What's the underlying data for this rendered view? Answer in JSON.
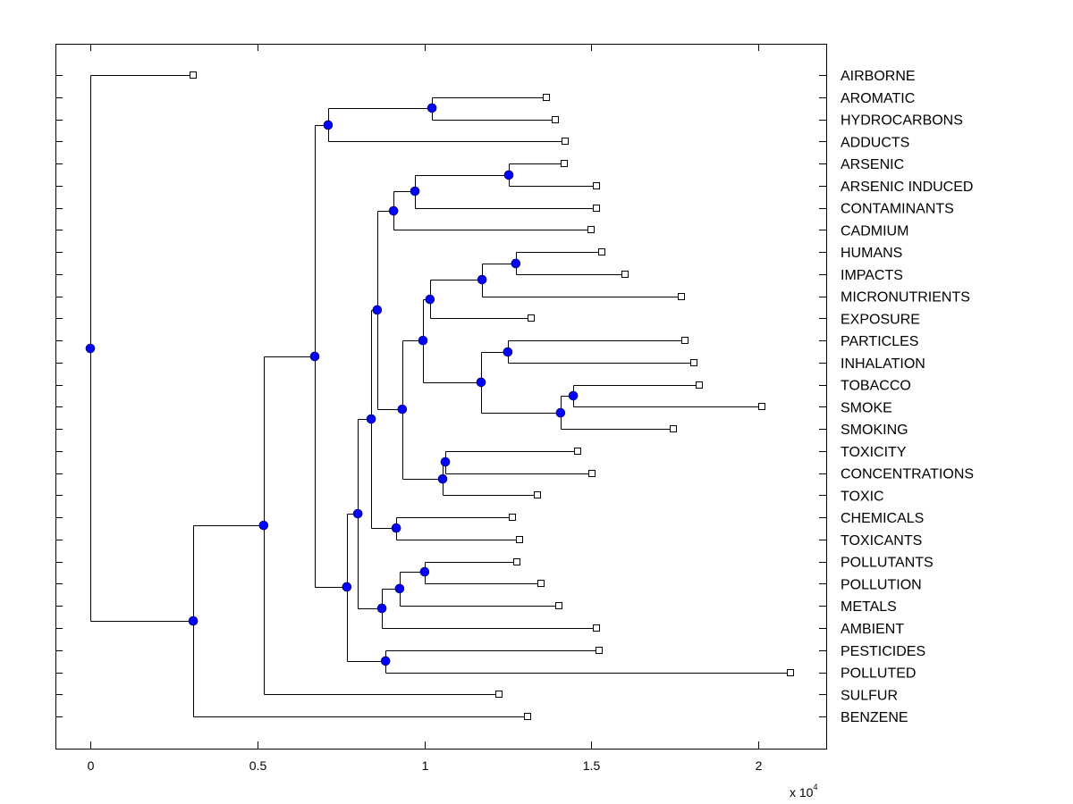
{
  "chart_data": {
    "type": "dendrogram",
    "title": "",
    "xlabel": "",
    "ylabel": "",
    "x_multiplier_label": "x 10",
    "x_multiplier_exponent": "4",
    "xlim": [
      -0.1,
      2.2
    ],
    "xticks": [
      0,
      0.5,
      1,
      1.5,
      2
    ],
    "xtick_labels": [
      "0",
      "0.5",
      "1",
      "1.5",
      "2"
    ],
    "grid": false,
    "colors": {
      "internal_node": "#0000ff",
      "leaf_marker_fill": "#ffffff",
      "line": "#000000"
    },
    "leaves": [
      {
        "id": "AIRBORNE",
        "label": "AIRBORNE",
        "row": 0,
        "x": 0.308
      },
      {
        "id": "AROMATIC",
        "label": "AROMATIC",
        "row": 1,
        "x": 1.365
      },
      {
        "id": "HYDROCARBONS",
        "label": "HYDROCARBONS",
        "row": 2,
        "x": 1.392
      },
      {
        "id": "ADDUCTS",
        "label": "ADDUCTS",
        "row": 3,
        "x": 1.422
      },
      {
        "id": "ARSENIC",
        "label": "ARSENIC",
        "row": 4,
        "x": 1.419
      },
      {
        "id": "ARSENIC_INDUCED",
        "label": "ARSENIC INDUCED",
        "row": 5,
        "x": 1.515
      },
      {
        "id": "CONTAMINANTS",
        "label": "CONTAMINANTS",
        "row": 6,
        "x": 1.515
      },
      {
        "id": "CADMIUM",
        "label": "CADMIUM",
        "row": 7,
        "x": 1.499
      },
      {
        "id": "HUMANS",
        "label": "HUMANS",
        "row": 8,
        "x": 1.531
      },
      {
        "id": "IMPACTS",
        "label": "IMPACTS",
        "row": 9,
        "x": 1.601
      },
      {
        "id": "MICRONUTRIENTS",
        "label": "MICRONUTRIENTS",
        "row": 10,
        "x": 1.77
      },
      {
        "id": "EXPOSURE",
        "label": "EXPOSURE",
        "row": 11,
        "x": 1.32
      },
      {
        "id": "PARTICLES",
        "label": "PARTICLES",
        "row": 12,
        "x": 1.78
      },
      {
        "id": "INHALATION",
        "label": "INHALATION",
        "row": 13,
        "x": 1.807
      },
      {
        "id": "TOBACCO",
        "label": "TOBACCO",
        "row": 14,
        "x": 1.823
      },
      {
        "id": "SMOKE",
        "label": "SMOKE",
        "row": 15,
        "x": 2.011
      },
      {
        "id": "SMOKING",
        "label": "SMOKING",
        "row": 16,
        "x": 1.746
      },
      {
        "id": "TOXICITY",
        "label": "TOXICITY",
        "row": 17,
        "x": 1.459
      },
      {
        "id": "CONCENTRATIONS",
        "label": "CONCENTRATIONS",
        "row": 18,
        "x": 1.502
      },
      {
        "id": "TOXIC",
        "label": "TOXIC",
        "row": 19,
        "x": 1.339
      },
      {
        "id": "CHEMICALS",
        "label": "CHEMICALS",
        "row": 20,
        "x": 1.264
      },
      {
        "id": "TOXICANTS",
        "label": "TOXICANTS",
        "row": 21,
        "x": 1.285
      },
      {
        "id": "POLLUTANTS",
        "label": "POLLUTANTS",
        "row": 22,
        "x": 1.277
      },
      {
        "id": "POLLUTION",
        "label": "POLLUTION",
        "row": 23,
        "x": 1.349
      },
      {
        "id": "METALS",
        "label": "METALS",
        "row": 24,
        "x": 1.403
      },
      {
        "id": "AMBIENT",
        "label": "AMBIENT",
        "row": 25,
        "x": 1.515
      },
      {
        "id": "PESTICIDES",
        "label": "PESTICIDES",
        "row": 26,
        "x": 1.523
      },
      {
        "id": "POLLUTED",
        "label": "POLLUTED",
        "row": 27,
        "x": 2.096
      },
      {
        "id": "SULFUR",
        "label": "SULFUR",
        "row": 28,
        "x": 1.224
      },
      {
        "id": "BENZENE",
        "label": "BENZENE",
        "row": 29,
        "x": 1.309
      }
    ],
    "nodes": [
      {
        "id": "n_arom",
        "x": 1.023,
        "row": 1.49,
        "children": [
          "AROMATIC",
          "HYDROCARBONS"
        ]
      },
      {
        "id": "n_arom2",
        "x": 0.712,
        "row": 2.26,
        "children": [
          "n_arom",
          "ADDUCTS"
        ]
      },
      {
        "id": "n_ars",
        "x": 1.253,
        "row": 4.52,
        "children": [
          "ARSENIC",
          "ARSENIC_INDUCED"
        ]
      },
      {
        "id": "n_ars2",
        "x": 0.972,
        "row": 5.25,
        "children": [
          "n_ars",
          "CONTAMINANTS"
        ]
      },
      {
        "id": "n_ars3",
        "x": 0.908,
        "row": 6.14,
        "children": [
          "n_ars2",
          "CADMIUM"
        ]
      },
      {
        "id": "n_hum",
        "x": 1.274,
        "row": 8.52,
        "children": [
          "HUMANS",
          "IMPACTS"
        ]
      },
      {
        "id": "n_hum2",
        "x": 1.173,
        "row": 9.25,
        "children": [
          "n_hum",
          "MICRONUTRIENTS"
        ]
      },
      {
        "id": "n_hum3",
        "x": 1.017,
        "row": 10.14,
        "children": [
          "n_hum2",
          "EXPOSURE"
        ]
      },
      {
        "id": "n_part",
        "x": 1.25,
        "row": 12.52,
        "children": [
          "PARTICLES",
          "INHALATION"
        ]
      },
      {
        "id": "n_tob",
        "x": 1.446,
        "row": 14.5,
        "children": [
          "TOBACCO",
          "SMOKE"
        ]
      },
      {
        "id": "n_tob2",
        "x": 1.408,
        "row": 15.27,
        "children": [
          "n_tob",
          "SMOKING"
        ]
      },
      {
        "id": "n_ps",
        "x": 1.17,
        "row": 13.89,
        "children": [
          "n_part",
          "n_tob2"
        ]
      },
      {
        "id": "n_hp",
        "x": 0.996,
        "row": 12.0,
        "children": [
          "n_hum3",
          "n_ps"
        ]
      },
      {
        "id": "n_tox",
        "x": 1.063,
        "row": 17.49,
        "children": [
          "TOXICITY",
          "CONCENTRATIONS"
        ]
      },
      {
        "id": "n_tox2",
        "x": 1.055,
        "row": 18.26,
        "children": [
          "n_tox",
          "TOXIC"
        ]
      },
      {
        "id": "n_mid",
        "x": 0.934,
        "row": 15.11,
        "children": [
          "n_hp",
          "n_tox2"
        ]
      },
      {
        "id": "n_ars4",
        "x": 0.859,
        "row": 10.62,
        "children": [
          "n_ars3",
          "n_mid"
        ]
      },
      {
        "id": "n_chem",
        "x": 0.916,
        "row": 20.48,
        "children": [
          "CHEMICALS",
          "TOXICANTS"
        ]
      },
      {
        "id": "n_big",
        "x": 0.841,
        "row": 15.55,
        "children": [
          "n_ars4",
          "n_chem"
        ]
      },
      {
        "id": "n_pol",
        "x": 1.001,
        "row": 22.46,
        "children": [
          "POLLUTANTS",
          "POLLUTION"
        ]
      },
      {
        "id": "n_pol2",
        "x": 0.926,
        "row": 23.22,
        "children": [
          "n_pol",
          "METALS"
        ]
      },
      {
        "id": "n_pol3",
        "x": 0.873,
        "row": 24.11,
        "children": [
          "n_pol2",
          "AMBIENT"
        ]
      },
      {
        "id": "n_b2",
        "x": 0.801,
        "row": 19.83,
        "children": [
          "n_big",
          "n_pol3"
        ]
      },
      {
        "id": "n_pest",
        "x": 0.884,
        "row": 26.49,
        "children": [
          "PESTICIDES",
          "POLLUTED"
        ]
      },
      {
        "id": "n_b3",
        "x": 0.768,
        "row": 23.14,
        "children": [
          "n_b2",
          "n_pest"
        ]
      },
      {
        "id": "n_c",
        "x": 0.672,
        "row": 12.72,
        "children": [
          "n_arom2",
          "n_b3"
        ]
      },
      {
        "id": "n_d",
        "x": 0.519,
        "row": 20.36,
        "children": [
          "n_c",
          "SULFUR"
        ]
      },
      {
        "id": "n_e",
        "x": 0.308,
        "row": 24.68,
        "children": [
          "n_d",
          "BENZENE"
        ]
      },
      {
        "id": "root",
        "x": 0.0,
        "row": 12.36,
        "children": [
          "AIRBORNE",
          "n_e"
        ]
      }
    ]
  }
}
